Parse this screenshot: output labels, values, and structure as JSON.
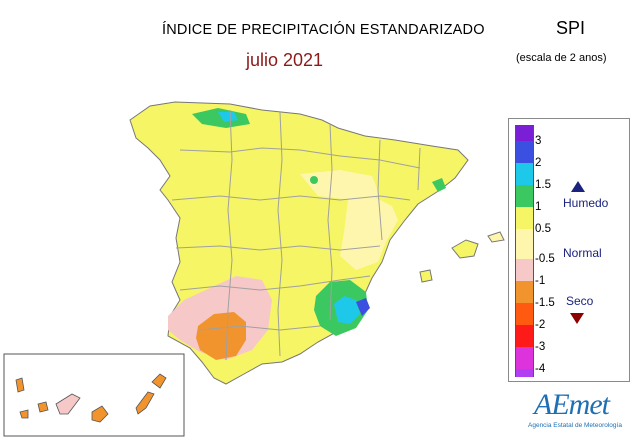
{
  "header": {
    "title": "ÍNDICE DE PRECIPITACIÓN ESTANDARIZADO",
    "subtitle": "julio 2021",
    "index_name": "SPI",
    "scale_note": "(escala de 2 anos)"
  },
  "legend": {
    "ticks": [
      "3",
      "2",
      "1.5",
      "1",
      "0.5",
      "-0.5",
      "-1",
      "-1.5",
      "-2",
      "-3",
      "-4"
    ],
    "colors": [
      "#7a1fd6",
      "#3b4fe0",
      "#1ec8e8",
      "#3cc860",
      "#f5f565",
      "#fff6ae",
      "#f7c8c8",
      "#f2942e",
      "#ff5a10",
      "#ff1a1a",
      "#dd33dd",
      "#b13ef0"
    ],
    "wet_label": "Humedo",
    "normal_label": "Normal",
    "dry_label": "Seco",
    "wet_color": "#1a237e",
    "dry_color": "#8b0000"
  },
  "map_colors": {
    "base": "#f5f565",
    "normal": "#fff6ae",
    "pink": "#f7c8c8",
    "orange": "#f2942e",
    "green": "#3cc860",
    "cyan": "#1ec8e8",
    "blue": "#3b4fe0",
    "border": "#a0a0a0"
  },
  "logo": {
    "text": "AEmet",
    "subtitle": "Agencia Estatal de Meteorología"
  }
}
